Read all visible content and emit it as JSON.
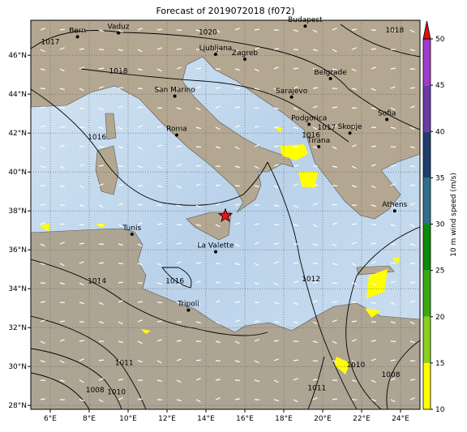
{
  "map": {
    "title": "Forecast of 2019072018 (f072)",
    "xlim": [
      5,
      25
    ],
    "ylim": [
      27.8,
      47.8
    ],
    "xticks": [
      {
        "value": 6,
        "label": "6°E"
      },
      {
        "value": 8,
        "label": "8°E"
      },
      {
        "value": 10,
        "label": "10°E"
      },
      {
        "value": 12,
        "label": "12°E"
      },
      {
        "value": 14,
        "label": "14°E"
      },
      {
        "value": 16,
        "label": "16°E"
      },
      {
        "value": 18,
        "label": "18°E"
      },
      {
        "value": 20,
        "label": "20°E"
      },
      {
        "value": 22,
        "label": "22°E"
      },
      {
        "value": 24,
        "label": "24°E"
      }
    ],
    "yticks": [
      {
        "value": 28,
        "label": "28°N"
      },
      {
        "value": 30,
        "label": "30°N"
      },
      {
        "value": 32,
        "label": "32°N"
      },
      {
        "value": 34,
        "label": "34°N"
      },
      {
        "value": 36,
        "label": "36°N"
      },
      {
        "value": 38,
        "label": "38°N"
      },
      {
        "value": 40,
        "label": "40°N"
      },
      {
        "value": 42,
        "label": "42°N"
      },
      {
        "value": 44,
        "label": "44°N"
      },
      {
        "value": 46,
        "label": "46°N"
      }
    ],
    "grid": true,
    "cities": [
      {
        "name": "Bern",
        "lon": 7.4,
        "lat": 46.95
      },
      {
        "name": "Vaduz",
        "lon": 9.5,
        "lat": 47.15
      },
      {
        "name": "Budapest",
        "lon": 19.1,
        "lat": 47.5
      },
      {
        "name": "Ljubljana",
        "lon": 14.5,
        "lat": 46.05
      },
      {
        "name": "Zagreb",
        "lon": 16.0,
        "lat": 45.8
      },
      {
        "name": "Belgrade",
        "lon": 20.4,
        "lat": 44.8
      },
      {
        "name": "San Marino",
        "lon": 12.4,
        "lat": 43.9
      },
      {
        "name": "Sarajevo",
        "lon": 18.4,
        "lat": 43.85
      },
      {
        "name": "Podgorica",
        "lon": 19.3,
        "lat": 42.45
      },
      {
        "name": "Sofia",
        "lon": 23.3,
        "lat": 42.7
      },
      {
        "name": "Skopje",
        "lon": 21.4,
        "lat": 42.0
      },
      {
        "name": "Tirana",
        "lon": 19.8,
        "lat": 41.3
      },
      {
        "name": "Roma",
        "lon": 12.5,
        "lat": 41.9
      },
      {
        "name": "Athens",
        "lon": 23.7,
        "lat": 38.0
      },
      {
        "name": "Tunis",
        "lon": 10.2,
        "lat": 36.8
      },
      {
        "name": "La Valette",
        "lon": 14.5,
        "lat": 35.9
      },
      {
        "name": "Tripoli",
        "lon": 13.1,
        "lat": 32.9
      }
    ],
    "marker": {
      "lon": 15.0,
      "lat": 37.75,
      "color": "#e8141c"
    },
    "isobar_labels": [
      {
        "text": "1017",
        "lon": 6.0,
        "lat": 46.7
      },
      {
        "text": "1020",
        "lon": 14.1,
        "lat": 47.2
      },
      {
        "text": "1018",
        "lon": 9.5,
        "lat": 45.2
      },
      {
        "text": "1018",
        "lon": 23.7,
        "lat": 47.3
      },
      {
        "text": "1016",
        "lon": 8.4,
        "lat": 41.8
      },
      {
        "text": "1017",
        "lon": 20.2,
        "lat": 42.3
      },
      {
        "text": "1016",
        "lon": 19.4,
        "lat": 41.9
      },
      {
        "text": "1014",
        "lon": 8.4,
        "lat": 34.4
      },
      {
        "text": "1016",
        "lon": 12.4,
        "lat": 34.4
      },
      {
        "text": "1012",
        "lon": 19.4,
        "lat": 34.5
      },
      {
        "text": "1011",
        "lon": 9.8,
        "lat": 30.2
      },
      {
        "text": "1010",
        "lon": 9.4,
        "lat": 28.7
      },
      {
        "text": "1008",
        "lon": 8.3,
        "lat": 28.8
      },
      {
        "text": "1011",
        "lon": 19.7,
        "lat": 28.9
      },
      {
        "text": "1010",
        "lon": 21.7,
        "lat": 30.1
      },
      {
        "text": "1008",
        "lon": 23.5,
        "lat": 29.6
      }
    ],
    "colorbar": {
      "label": "10 m wind speed (m/s)",
      "lim": [
        10,
        50
      ],
      "ticks": [
        10,
        15,
        20,
        25,
        30,
        35,
        40,
        45,
        50
      ],
      "bounds": [
        10,
        15,
        20,
        25,
        30,
        35,
        40,
        45,
        50
      ],
      "colors": [
        "#ffff00",
        "#8cd11e",
        "#3caa14",
        "#0a8c0a",
        "#2e6f8e",
        "#1e3f6e",
        "#6a3aa6",
        "#a03cc8"
      ],
      "extend_color": "#e01010"
    }
  }
}
